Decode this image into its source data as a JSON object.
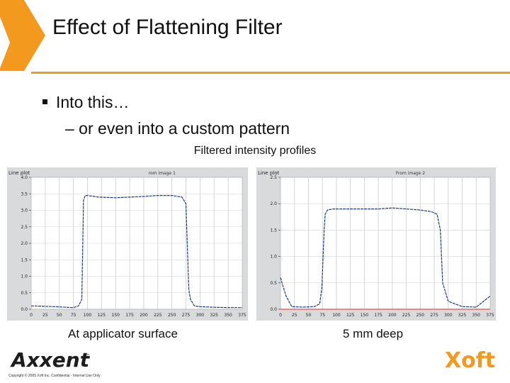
{
  "slide": {
    "title": "Effect of Flattening Filter",
    "bullet": "Into this…",
    "sub_bullet": "– or even into a custom pattern",
    "caption": "Filtered intensity profiles",
    "accent_color": "#f39a1e",
    "decoration_icon": "orange-chevron-icon"
  },
  "charts": [
    {
      "panel_title": "Line plot",
      "image_title": "rom image 1",
      "sublabel": "At applicator surface"
    },
    {
      "panel_title": "Line plot",
      "image_title": "From image 2",
      "sublabel": "5 mm deep"
    }
  ],
  "chart_data": [
    {
      "type": "line",
      "xlim": [
        0,
        375
      ],
      "ylim": [
        0,
        4.0
      ],
      "xticks": [
        0,
        25,
        50,
        75,
        100,
        125,
        150,
        175,
        200,
        225,
        250,
        275,
        300,
        325,
        350,
        375
      ],
      "yticks": [
        "0.0",
        "0.5",
        "1.0",
        "1.5",
        "2.0",
        "2.5",
        "3.0",
        "3.5",
        "4.0"
      ],
      "grid": true,
      "series": [
        {
          "color": "#1a3a8a",
          "x": [
            0,
            40,
            75,
            84,
            90,
            93,
            96,
            100,
            120,
            150,
            175,
            200,
            225,
            250,
            268,
            275,
            280,
            283,
            290,
            300,
            325,
            350,
            375
          ],
          "y": [
            0.1,
            0.08,
            0.05,
            0.1,
            0.3,
            3.3,
            3.45,
            3.45,
            3.4,
            3.38,
            3.4,
            3.42,
            3.45,
            3.45,
            3.4,
            3.2,
            0.6,
            0.3,
            0.1,
            0.08,
            0.06,
            0.05,
            0.05
          ]
        }
      ]
    },
    {
      "type": "line",
      "xlim": [
        0,
        375
      ],
      "ylim": [
        0,
        2.5
      ],
      "xticks": [
        0,
        25,
        50,
        75,
        100,
        125,
        150,
        175,
        200,
        225,
        250,
        275,
        300,
        325,
        350,
        375
      ],
      "yticks": [
        "0.0",
        "0.5",
        "1.0",
        "1.5",
        "2.0",
        "2.5"
      ],
      "grid": true,
      "series": [
        {
          "color": "#1a3a8a",
          "x": [
            0,
            4,
            10,
            20,
            40,
            60,
            70,
            74,
            78,
            80,
            84,
            95,
            125,
            150,
            175,
            200,
            225,
            250,
            270,
            280,
            286,
            290,
            300,
            325,
            350,
            375
          ],
          "y": [
            0.6,
            0.45,
            0.25,
            0.05,
            0.04,
            0.05,
            0.1,
            0.4,
            1.5,
            1.8,
            1.88,
            1.9,
            1.9,
            1.9,
            1.9,
            1.92,
            1.9,
            1.88,
            1.85,
            1.8,
            1.5,
            0.5,
            0.15,
            0.05,
            0.04,
            0.25
          ]
        },
        {
          "color": "#e05050",
          "x": [
            0,
            375
          ],
          "y": [
            0,
            0
          ]
        }
      ]
    }
  ],
  "footer": {
    "logo_left": "Axxent",
    "trademark": "™",
    "copyright": "Copyright © 2005 Xoft Inc. Confidential - Internal Use Only",
    "logo_right": "Xoft"
  }
}
